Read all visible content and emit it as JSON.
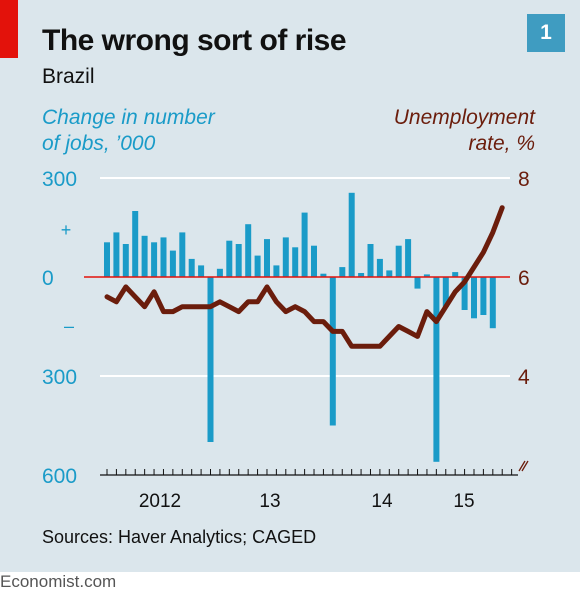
{
  "header": {
    "title": "The wrong sort of rise",
    "subtitle": "Brazil",
    "chart_number": "1"
  },
  "axes": {
    "left_title_line1": "Change in number",
    "left_title_line2": "of jobs, ’000",
    "right_title_line1": "Unemployment",
    "right_title_line2": "rate, %"
  },
  "footer": {
    "source": "Sources: Haver Analytics; CAGED",
    "brand": "Economist.com"
  },
  "colors": {
    "bars": "#1a9bc8",
    "line": "#6b1d0c",
    "left_axis": "#1a9bc8",
    "right_axis": "#6b1d0c",
    "zero_line": "#e3120b",
    "panel": "#dbe6ec",
    "accent": "#e3120b"
  },
  "chart_data": [
    {
      "type": "bar",
      "name": "Change in number of jobs, '000",
      "axis": "left",
      "ylim": [
        -600,
        300
      ],
      "ylabel": "Change in number of jobs, ’000",
      "yticks": [
        300,
        0,
        -300,
        -600
      ],
      "ytick_labels": [
        "300",
        "0",
        "300",
        "600"
      ],
      "sign_markers": [
        "+",
        "–"
      ],
      "x_start": "2011-07",
      "values": [
        105,
        135,
        100,
        200,
        125,
        105,
        120,
        80,
        135,
        55,
        35,
        -500,
        25,
        110,
        100,
        160,
        65,
        115,
        35,
        120,
        90,
        195,
        95,
        10,
        -450,
        30,
        255,
        12,
        100,
        55,
        20,
        95,
        115,
        -35,
        8,
        -560,
        -90,
        15,
        -100,
        -125,
        -115,
        -155
      ]
    },
    {
      "type": "line",
      "name": "Unemployment rate, %",
      "axis": "right",
      "ylim": [
        2.0,
        8.0
      ],
      "ylabel": "Unemployment rate, %",
      "yticks": [
        8,
        6,
        4
      ],
      "x_start": "2011-07",
      "values": [
        5.6,
        5.5,
        5.8,
        5.6,
        5.4,
        5.7,
        5.3,
        5.3,
        5.4,
        5.4,
        5.4,
        5.4,
        5.5,
        5.4,
        5.3,
        5.5,
        5.5,
        5.8,
        5.5,
        5.3,
        5.4,
        5.3,
        5.1,
        5.1,
        4.9,
        4.9,
        4.6,
        4.6,
        4.6,
        4.6,
        4.8,
        5.0,
        4.9,
        4.8,
        5.3,
        5.1,
        5.4,
        5.7,
        5.9,
        6.2,
        6.5,
        6.9,
        7.4
      ]
    }
  ],
  "x_axis": {
    "labels": [
      "2012",
      "13",
      "14",
      "15"
    ],
    "break_marker": true
  }
}
